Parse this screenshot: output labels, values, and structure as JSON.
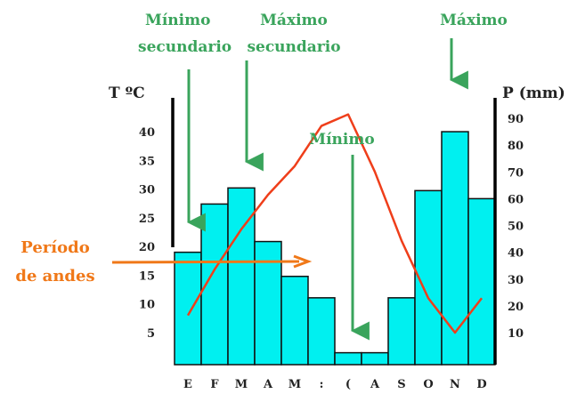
{
  "chart_data": {
    "type": "bar",
    "categories": [
      "E",
      "F",
      "M",
      "A",
      "M",
      ":",
      "(",
      "A",
      "S",
      "O",
      "N",
      "D"
    ],
    "series": [
      {
        "kind": "bar",
        "values": [
          40,
          58,
          64,
          44,
          31,
          23,
          2.5,
          2.5,
          23,
          63,
          85,
          60
        ]
      },
      {
        "kind": "line",
        "values": [
          8,
          16,
          23,
          29,
          34,
          41,
          43,
          33,
          21,
          11,
          5,
          11
        ]
      }
    ],
    "left_axis": {
      "title": "T ºC",
      "ticks": [
        5,
        10,
        15,
        20,
        25,
        30,
        35,
        40
      ],
      "ylim": [
        0,
        45
      ]
    },
    "right_axis": {
      "title": "P (mm)",
      "ticks": [
        10,
        20,
        30,
        40,
        50,
        60,
        70,
        80,
        90
      ],
      "ylim": [
        0,
        95
      ]
    },
    "annotations": [
      {
        "text": [
          "Mínimo",
          "secundario"
        ]
      },
      {
        "text": [
          "Máximo",
          "secundario"
        ]
      },
      {
        "text": [
          "Mínimo"
        ]
      },
      {
        "text": [
          "Máximo"
        ]
      },
      {
        "text": [
          "Período",
          "de andes"
        ]
      }
    ],
    "colors": {
      "bars": "#00f0f0",
      "bar_stroke": "#111111",
      "line": "#ef3e1a",
      "arrows_green": "#3aa45c",
      "arrow_orange": "#f07818",
      "axis": "#000000"
    }
  }
}
